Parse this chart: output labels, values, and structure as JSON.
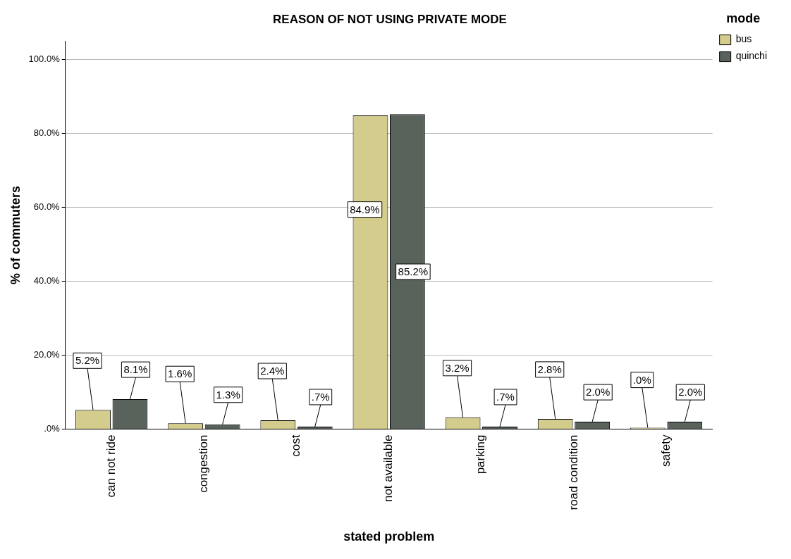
{
  "chart_data": {
    "type": "bar",
    "title": "REASON OF NOT USING PRIVATE MODE",
    "xlabel": "stated problem",
    "ylabel": "% of commuters",
    "legend_title": "mode",
    "legend": "top right",
    "grid": "y",
    "categories": [
      "can not ride",
      "congestion",
      "cost",
      "not available",
      "parking",
      "road condition",
      "safety"
    ],
    "series": [
      {
        "name": "bus",
        "color": "#d3cc8c",
        "values": [
          5.2,
          1.6,
          2.4,
          84.9,
          3.2,
          2.8,
          0.0
        ],
        "value_labels": [
          "5.2%",
          "1.6%",
          "2.4%",
          "84.9%",
          "3.2%",
          "2.8%",
          ".0%"
        ]
      },
      {
        "name": "quinchi",
        "color": "#5a625c",
        "values": [
          8.1,
          1.3,
          0.7,
          85.2,
          0.7,
          2.0,
          2.0
        ],
        "value_labels": [
          "8.1%",
          "1.3%",
          ".7%",
          "85.2%",
          ".7%",
          "2.0%",
          "2.0%"
        ]
      }
    ],
    "ylim": [
      0,
      105
    ],
    "yticks": [
      {
        "value": 0,
        "label": ".0%"
      },
      {
        "value": 20,
        "label": "20.0%"
      },
      {
        "value": 40,
        "label": "40.0%"
      },
      {
        "value": 60,
        "label": "60.0%"
      },
      {
        "value": 80,
        "label": "80.0%"
      },
      {
        "value": 100,
        "label": "100.0%"
      }
    ]
  }
}
